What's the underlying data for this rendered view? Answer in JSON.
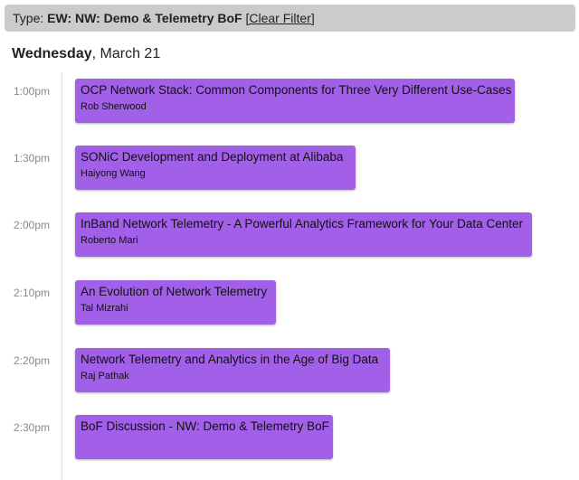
{
  "filter": {
    "prefix": "Type: ",
    "value": "EW: NW: Demo & Telemetry BoF",
    "clear_label": "[Clear Filter]"
  },
  "day": {
    "weekday": "Wednesday",
    "date": ", March 21"
  },
  "accent": "#a25fe8",
  "events": [
    {
      "time": "1:00pm",
      "title": "OCP Network Stack: Common Components for Three Very Different Use-Cases",
      "speaker": "Rob Sherwood"
    },
    {
      "time": "1:30pm",
      "title": "SONiC Development and Deployment at Alibaba",
      "speaker": "Haiyong Wang"
    },
    {
      "time": "2:00pm",
      "title": "InBand Network Telemetry - A Powerful Analytics Framework for Your Data Center",
      "speaker": "Roberto Mari"
    },
    {
      "time": "2:10pm",
      "title": "An Evolution of Network Telemetry",
      "speaker": "Tal Mizrahi"
    },
    {
      "time": "2:20pm",
      "title": "Network Telemetry and Analytics in the Age of Big Data",
      "speaker": "Raj Pathak"
    },
    {
      "time": "2:30pm",
      "title": "BoF Discussion - NW: Demo & Telemetry BoF",
      "speaker": ""
    }
  ]
}
